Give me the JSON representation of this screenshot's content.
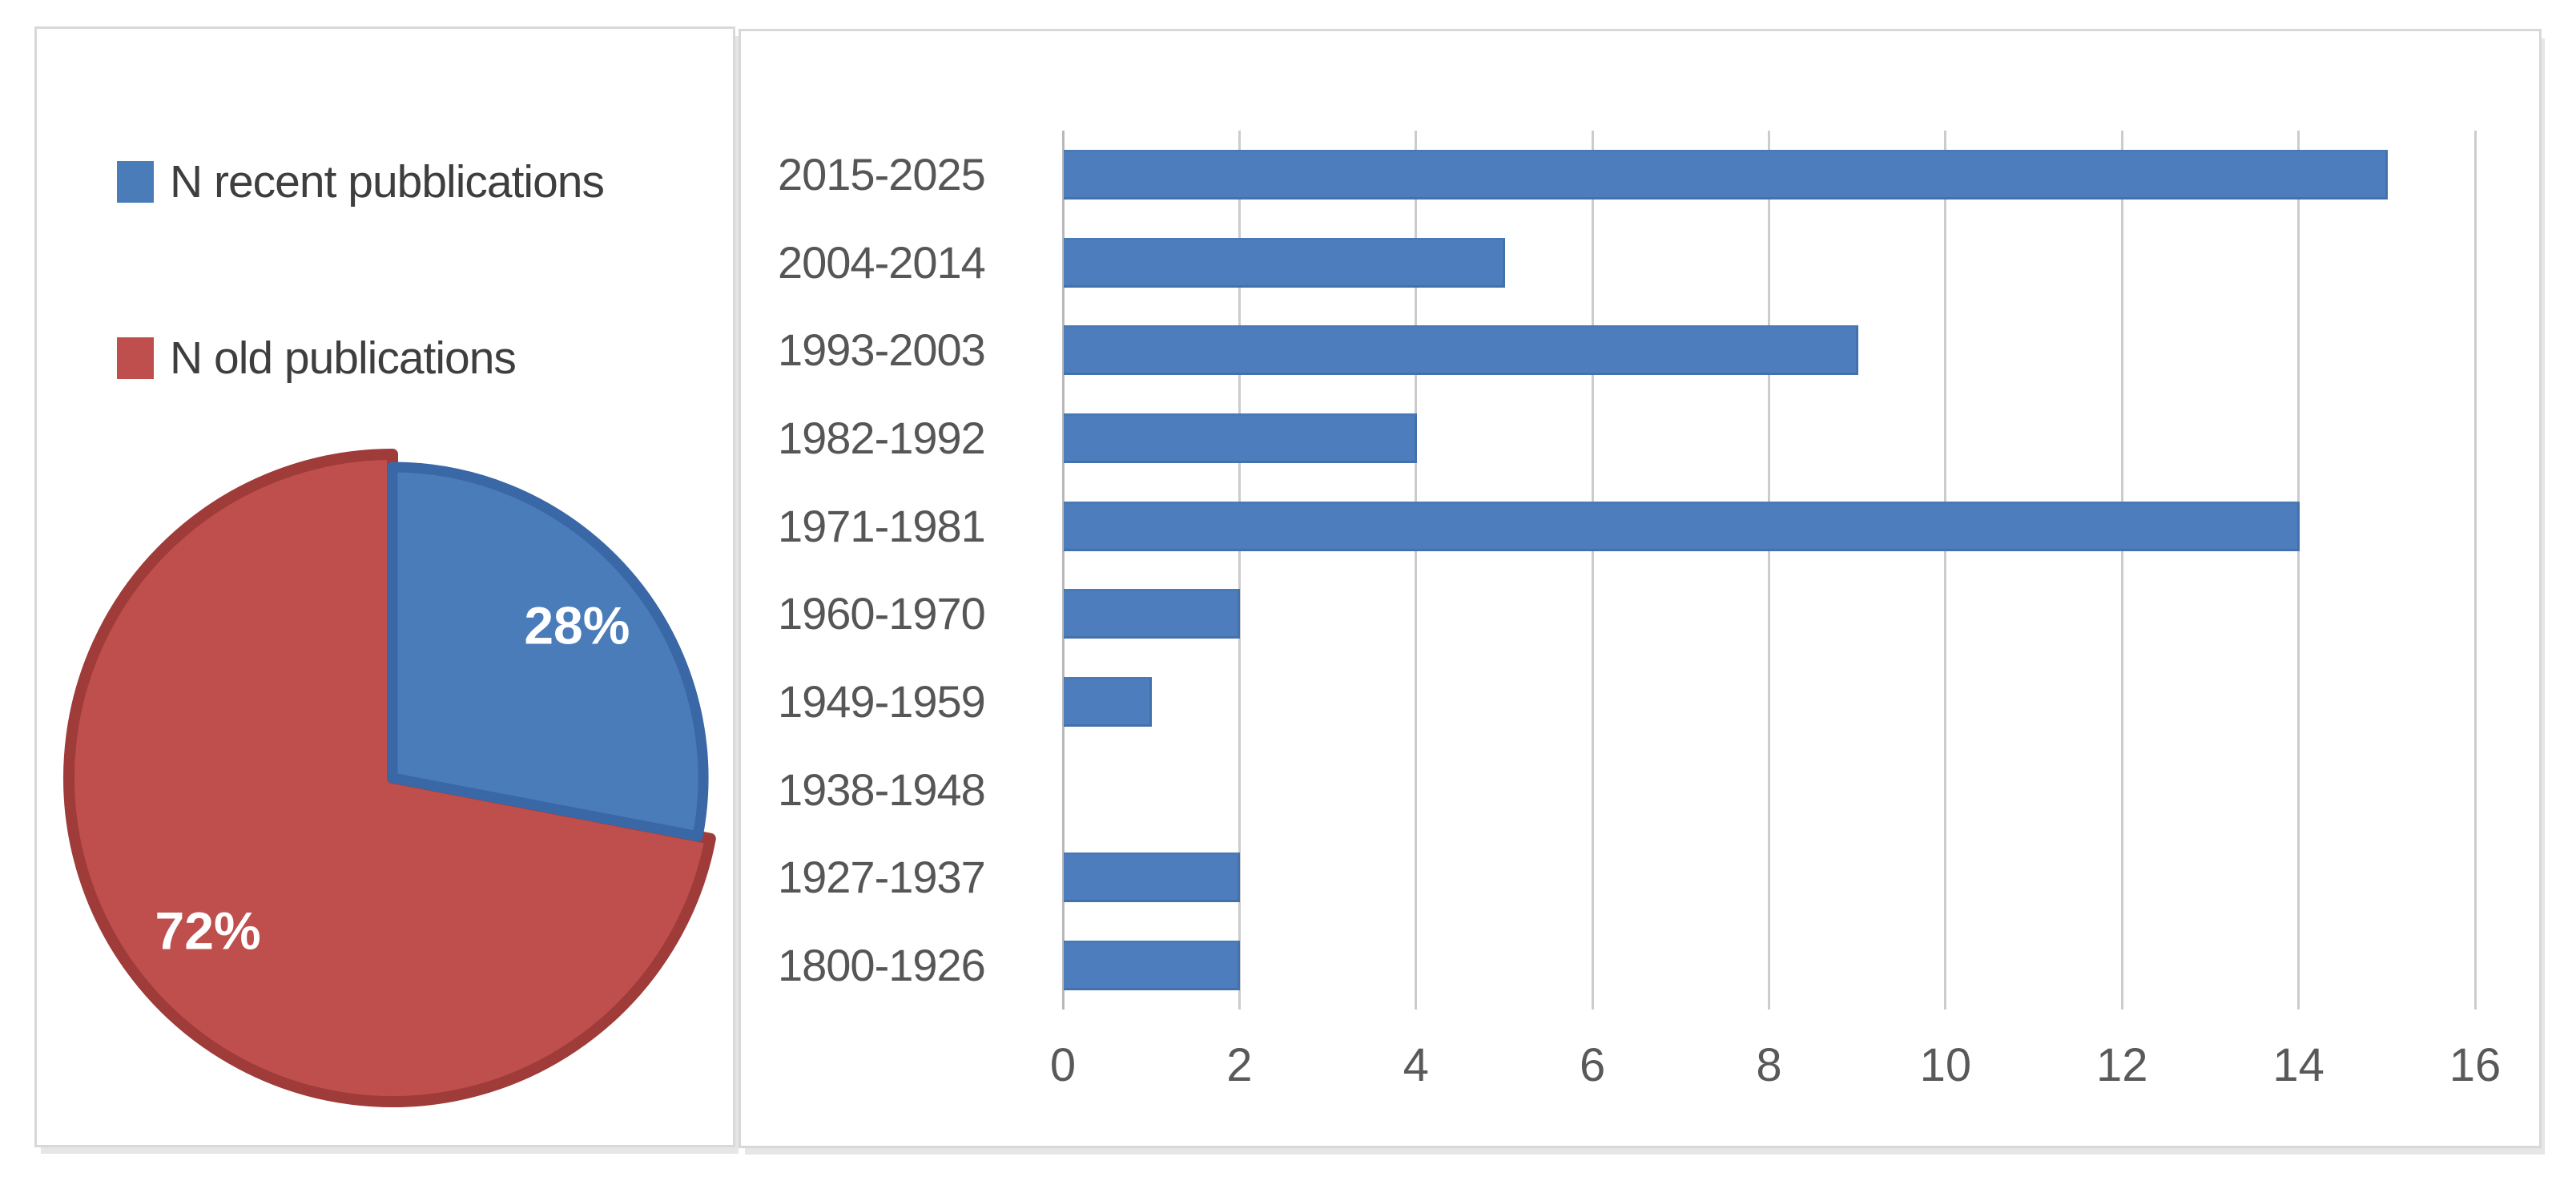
{
  "figure": {
    "background": "#ffffff",
    "panel_border_color": "#d8d8d8"
  },
  "chart_data": [
    {
      "type": "pie",
      "title": "",
      "legend_position": "top-left",
      "legend": [
        {
          "label": "N recent pubblications",
          "color": "#4a7cba"
        },
        {
          "label": "N old publications",
          "color": "#bf4f4c"
        }
      ],
      "slices": [
        {
          "label": "N recent pubblications",
          "value": 28,
          "display": "28%",
          "color": "#4a7cba",
          "edge": "#3a67a6"
        },
        {
          "label": "N old publications",
          "value": 72,
          "display": "72%",
          "color": "#bf4f4c",
          "edge": "#9f3c39"
        }
      ],
      "data_labels": "percent",
      "start_angle": "top",
      "direction": "clockwise"
    },
    {
      "type": "bar",
      "orientation": "horizontal",
      "title": "",
      "xlabel": "",
      "ylabel": "",
      "categories": [
        "2015-2025",
        "2004-2014",
        "1993-2003",
        "1982-1992",
        "1971-1981",
        "1960-1970",
        "1949-1959",
        "1938-1948",
        "1927-1937",
        "1800-1926"
      ],
      "values": [
        15,
        5,
        9,
        4,
        14,
        2,
        1,
        0,
        2,
        2
      ],
      "xlim": [
        0,
        16
      ],
      "xticks": [
        0,
        2,
        4,
        6,
        8,
        10,
        12,
        14,
        16
      ],
      "bar_color": "#4d7dbd",
      "bar_edge_color": "#4271ab",
      "gridline_color": "#cccccc",
      "axis_line_color": "#b8b8b8",
      "label_color": "#565656",
      "tick_color": "#595959",
      "grid": true,
      "legend": "none"
    }
  ]
}
